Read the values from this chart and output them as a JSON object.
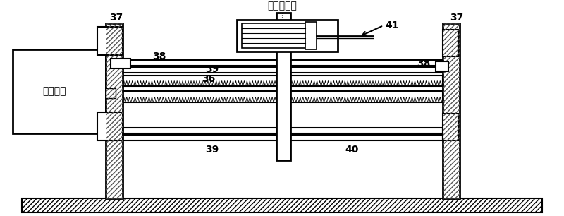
{
  "bg_color": "#ffffff",
  "line_color": "#000000",
  "title_text": "微型注射器",
  "label_37_left": "37",
  "label_37_right": "37",
  "label_38_left": "38",
  "label_38_right": "38",
  "label_39_top": "39",
  "label_39_bottom": "39",
  "label_36": "36",
  "label_40": "40",
  "label_41": "41",
  "label_motor": "步进电机",
  "figsize": [
    8.0,
    3.06
  ],
  "dpi": 100
}
